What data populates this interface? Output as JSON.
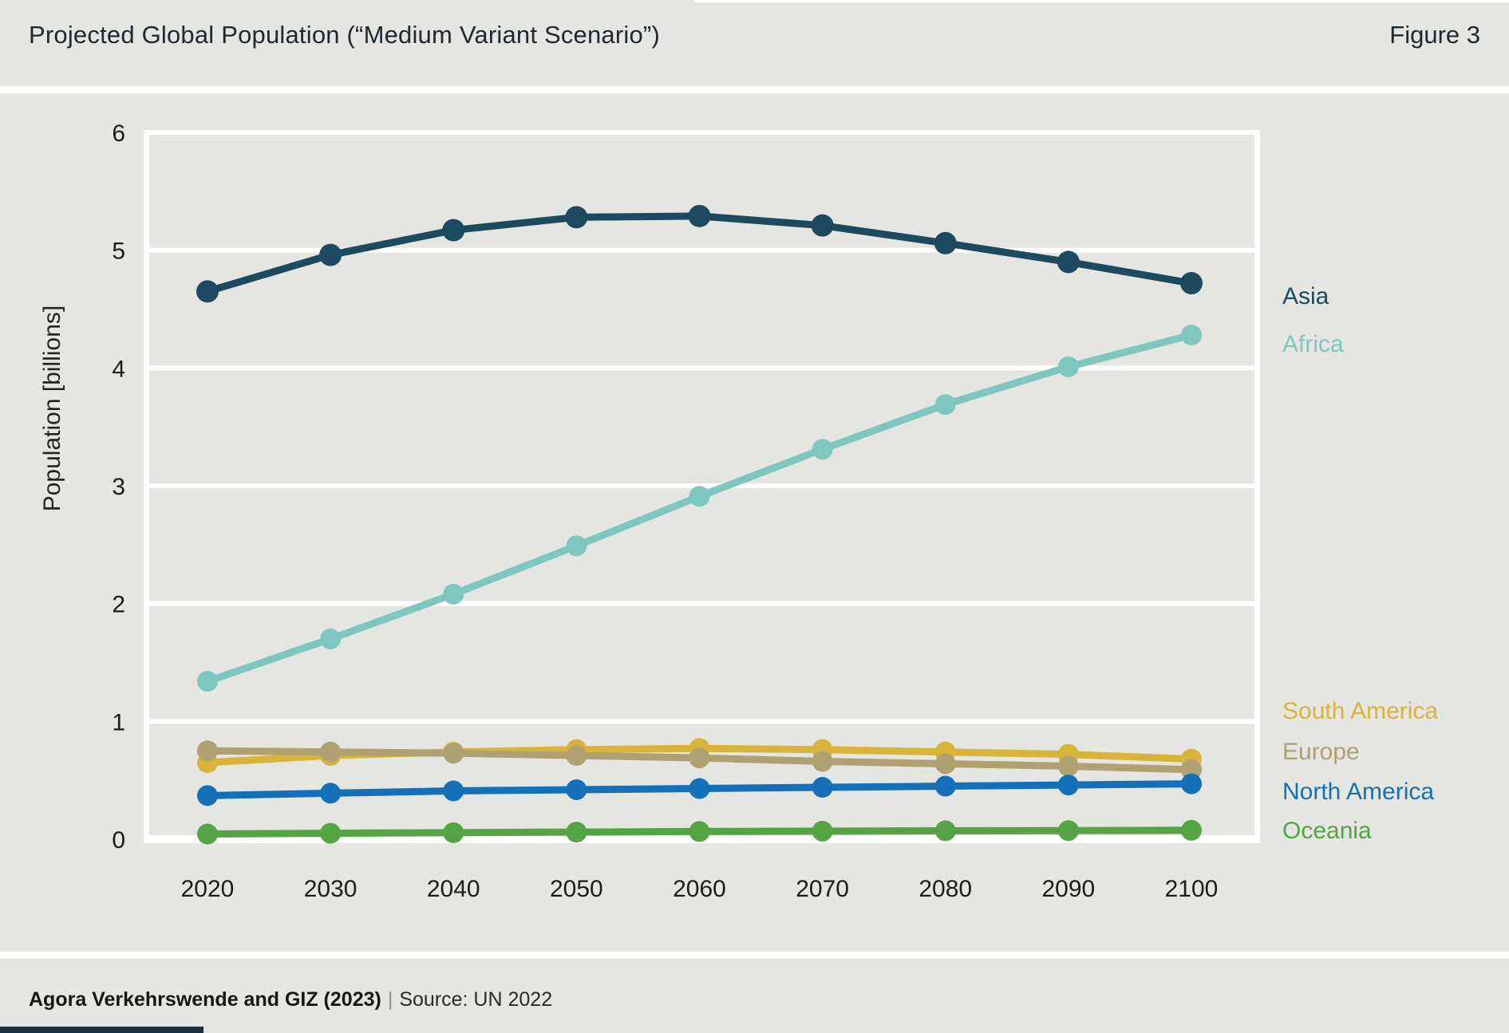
{
  "header": {
    "title": "Projected Global Population (“Medium Variant Scenario”)",
    "figure_label": "Figure 3"
  },
  "chart_data": {
    "type": "line",
    "title": "Projected Global Population (“Medium Variant Scenario”)",
    "xlabel": "",
    "ylabel": "Population [billions]",
    "x": [
      2020,
      2030,
      2040,
      2050,
      2060,
      2070,
      2080,
      2090,
      2100
    ],
    "yticks": [
      0,
      1,
      2,
      3,
      4,
      5,
      6
    ],
    "ylim": [
      0,
      6
    ],
    "grid": "horizontal white gridlines on gray background",
    "legend_position": "right outside plot, labels colored as series",
    "background_color": "#e5e6e1",
    "gridline_color": "#ffffff",
    "series": [
      {
        "name": "Asia",
        "color": "#1d4a61",
        "values": [
          4.65,
          4.96,
          5.17,
          5.28,
          5.29,
          5.21,
          5.06,
          4.9,
          4.72
        ]
      },
      {
        "name": "Africa",
        "color": "#7dc7be",
        "values": [
          1.34,
          1.7,
          2.08,
          2.49,
          2.91,
          3.31,
          3.69,
          4.01,
          4.28
        ]
      },
      {
        "name": "South America",
        "color": "#d8b43a",
        "values": [
          0.65,
          0.71,
          0.74,
          0.76,
          0.77,
          0.76,
          0.74,
          0.72,
          0.68
        ]
      },
      {
        "name": "Europe",
        "color": "#b0a173",
        "values": [
          0.75,
          0.74,
          0.73,
          0.71,
          0.69,
          0.66,
          0.64,
          0.62,
          0.59
        ]
      },
      {
        "name": "North America",
        "color": "#1470b8",
        "values": [
          0.37,
          0.39,
          0.41,
          0.42,
          0.43,
          0.44,
          0.45,
          0.46,
          0.47
        ]
      },
      {
        "name": "Oceania",
        "color": "#54a444",
        "values": [
          0.044,
          0.05,
          0.055,
          0.06,
          0.065,
          0.068,
          0.071,
          0.073,
          0.075
        ]
      }
    ]
  },
  "footer": {
    "attribution": "Agora Verkehrswende and GIZ (2023)",
    "separator": "|",
    "source": "Source: UN 2022",
    "accent_bar_color": "#14303e"
  }
}
